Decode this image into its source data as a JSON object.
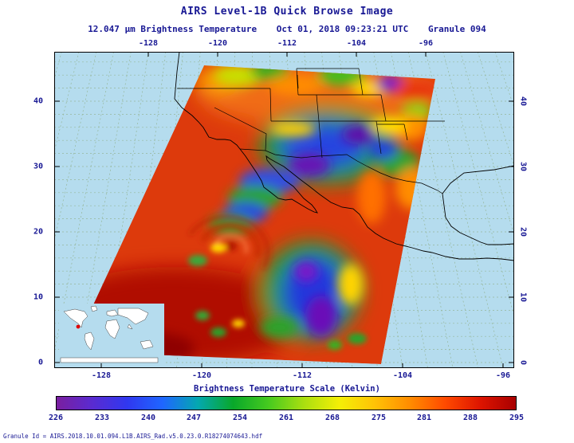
{
  "header": {
    "title": "AIRS Level-1B Quick Browse Image",
    "subtitle_wavelength": "12.047 µm Brightness Temperature",
    "subtitle_datetime": "Oct 01, 2018 09:23:21 UTC",
    "subtitle_granule": "Granule 094"
  },
  "axes": {
    "lon_ticks": [
      "-128",
      "-120",
      "-112",
      "-104",
      "-96"
    ],
    "lat_ticks": [
      "40",
      "30",
      "20",
      "10",
      "0"
    ]
  },
  "colorbar": {
    "label": "Brightness Temperature Scale (Kelvin)",
    "ticks": [
      "226",
      "233",
      "240",
      "247",
      "254",
      "261",
      "268",
      "275",
      "281",
      "288",
      "295"
    ],
    "unit": "Kelvin",
    "stops": [
      "#7a1fa0",
      "#5a2bd0",
      "#3038f0",
      "#1f66ff",
      "#04a8b0",
      "#09a82a",
      "#46ca1f",
      "#aadf10",
      "#f4ef06",
      "#ffc306",
      "#ff8c00",
      "#ff4a00",
      "#dd1400",
      "#a80000"
    ]
  },
  "footer": {
    "granule_id": "Granule Id = AIRS.2018.10.01.094.L1B.AIRS_Rad.v5.0.23.0.R18274074643.hdf"
  },
  "colors": {
    "text": "#181894",
    "map_background": "#b5dcee",
    "gridlines": "#96b79c",
    "coastlines": "#000000",
    "swath_base": "#dd3a0c",
    "inset_land": "#ffffff",
    "inset_marker": "#e00000"
  },
  "chart_data": {
    "type": "heatmap",
    "title": "AIRS Level-1B Quick Browse Image",
    "variable": "12.047 µm Brightness Temperature",
    "units": "Kelvin",
    "datetime": "Oct 01, 2018 09:23:21 UTC",
    "granule": "094",
    "scale_ticks": [
      226,
      233,
      240,
      247,
      254,
      261,
      268,
      275,
      281,
      288,
      295
    ],
    "scale_range": [
      226,
      295
    ],
    "x_axis": {
      "label": "longitude",
      "ticks": [
        -128,
        -120,
        -112,
        -104,
        -96
      ]
    },
    "y_axis": {
      "label": "latitude",
      "ticks": [
        40,
        30,
        20,
        10,
        0
      ]
    },
    "grid": true,
    "legend_position": "bottom",
    "notes": "Tilted satellite swath of brightness temperature over western North America and eastern Pacific; warm (red) ocean scene with cold (blue/purple) cloud systems; world-map inset marks granule location"
  }
}
